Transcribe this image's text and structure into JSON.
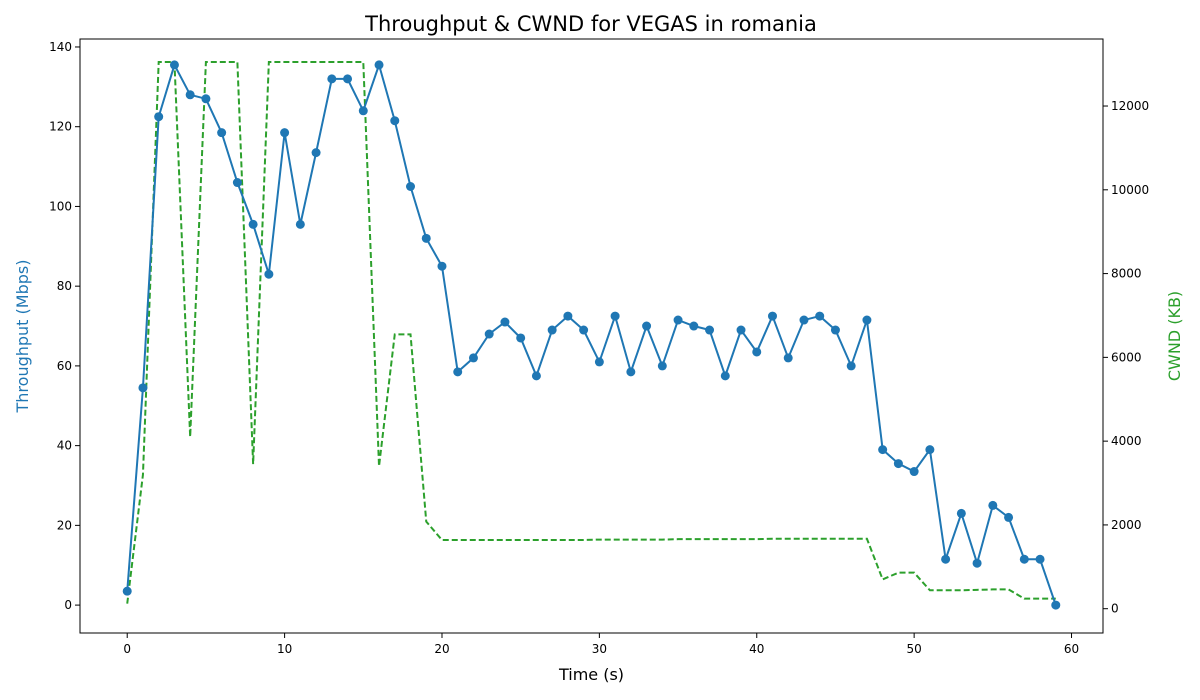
{
  "chart_data": {
    "type": "line",
    "title": "Throughput & CWND for VEGAS in romania",
    "xlabel": "Time (s)",
    "ylabel": "Throughput (Mbps)",
    "ylabel_right": "CWND (KB)",
    "xlim": [
      -3,
      62
    ],
    "ylim": [
      -7,
      142
    ],
    "ylim_right": [
      -580,
      13600
    ],
    "x_ticks": [
      0,
      10,
      20,
      30,
      40,
      50,
      60
    ],
    "y_ticks": [
      0,
      20,
      40,
      60,
      80,
      100,
      120,
      140
    ],
    "y_ticks_right": [
      0,
      2000,
      4000,
      6000,
      8000,
      10000,
      12000
    ],
    "grid": false,
    "colors": {
      "throughput": "#1f77b4",
      "cwnd": "#2ca02c"
    },
    "series": [
      {
        "axis": "left",
        "style": "solid-marker",
        "x": [
          0,
          1,
          2,
          3,
          4,
          5,
          6,
          7,
          8,
          9,
          10,
          11,
          12,
          13,
          14,
          15,
          16,
          17,
          18,
          19,
          20,
          21,
          22,
          23,
          24,
          25,
          26,
          27,
          28,
          29,
          30,
          31,
          32,
          33,
          34,
          35,
          36,
          37,
          38,
          39,
          40,
          41,
          42,
          43,
          44,
          45,
          46,
          47,
          48,
          49,
          50,
          51,
          52,
          53,
          54,
          55,
          56,
          57,
          58,
          59
        ],
        "values": [
          3.5,
          54.5,
          122.5,
          135.5,
          128,
          127,
          118.5,
          106,
          95.5,
          83,
          118.5,
          95.5,
          113.5,
          132,
          132,
          124,
          135.5,
          121.5,
          105,
          92,
          85,
          58.5,
          62,
          68,
          71,
          67,
          57.5,
          69,
          72.5,
          69,
          61,
          72.5,
          58.5,
          70,
          60,
          71.5,
          70,
          69,
          57.5,
          69,
          63.5,
          72.5,
          62,
          71.5,
          72.5,
          69,
          60,
          71.5,
          39,
          35.5,
          33.5,
          39,
          11.5,
          23,
          10.5,
          25,
          22,
          11.5,
          11.5,
          0
        ]
      },
      {
        "axis": "right",
        "style": "dashed",
        "x": [
          0,
          1,
          2,
          3,
          4,
          5,
          6,
          7,
          8,
          9,
          10,
          11,
          12,
          13,
          14,
          15,
          16,
          17,
          18,
          19,
          20,
          21,
          22,
          23,
          24,
          25,
          26,
          27,
          28,
          29,
          30,
          31,
          32,
          33,
          34,
          35,
          36,
          37,
          38,
          39,
          40,
          41,
          42,
          43,
          44,
          45,
          46,
          47,
          48,
          49,
          50,
          51,
          52,
          53,
          54,
          55,
          56,
          57,
          58,
          59
        ],
        "values": [
          120,
          3200,
          13050,
          13050,
          4100,
          13050,
          13050,
          13050,
          3450,
          13050,
          13050,
          13050,
          13050,
          13050,
          13050,
          13050,
          3400,
          6550,
          6550,
          2080,
          1640,
          1640,
          1640,
          1640,
          1640,
          1640,
          1640,
          1640,
          1640,
          1640,
          1650,
          1650,
          1650,
          1650,
          1650,
          1660,
          1660,
          1660,
          1660,
          1660,
          1660,
          1670,
          1670,
          1670,
          1670,
          1670,
          1670,
          1670,
          700,
          860,
          860,
          440,
          440,
          440,
          450,
          460,
          460,
          240,
          240,
          240
        ]
      }
    ]
  }
}
